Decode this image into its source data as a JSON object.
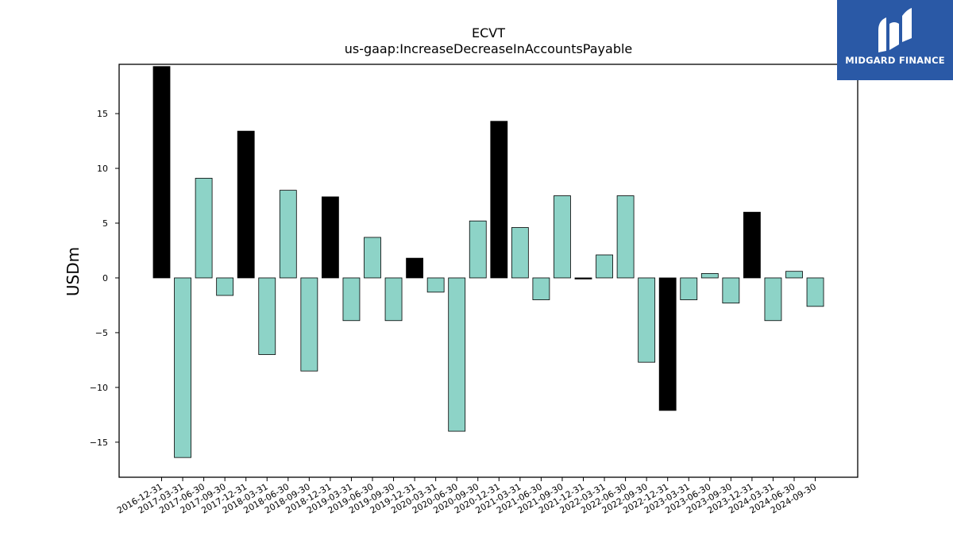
{
  "chart_data": {
    "type": "bar",
    "title": "ECVT",
    "subtitle": "us-gaap:IncreaseDecreaseInAccountsPayable",
    "xlabel": "",
    "ylabel": "USDm",
    "ylim": [
      -18.2,
      19.5
    ],
    "yticks": [
      -15,
      -10,
      -5,
      0,
      5,
      10,
      15
    ],
    "ytick_labels": [
      "−15",
      "−10",
      "−5",
      "0",
      "5",
      "10",
      "15"
    ],
    "grid": false,
    "categories": [
      "2016-12-31",
      "2017-03-31",
      "2017-06-30",
      "2017-09-30",
      "2017-12-31",
      "2018-03-31",
      "2018-06-30",
      "2018-09-30",
      "2018-12-31",
      "2019-03-31",
      "2019-06-30",
      "2019-09-30",
      "2019-12-31",
      "2020-03-31",
      "2020-06-30",
      "2020-09-30",
      "2020-12-31",
      "2021-03-31",
      "2021-06-30",
      "2021-09-30",
      "2021-12-31",
      "2022-03-31",
      "2022-06-30",
      "2022-09-30",
      "2022-12-31",
      "2023-03-31",
      "2023-06-30",
      "2023-09-30",
      "2023-12-31",
      "2024-03-31",
      "2024-06-30",
      "2024-09-30"
    ],
    "values": [
      19.3,
      -16.4,
      9.1,
      -1.6,
      13.4,
      -7.0,
      8.0,
      -8.5,
      7.4,
      -3.9,
      3.7,
      -3.9,
      1.8,
      -1.3,
      -14.0,
      5.2,
      14.3,
      4.6,
      -2.0,
      7.5,
      -0.1,
      2.1,
      7.5,
      -7.7,
      -12.1,
      -2.0,
      0.4,
      -2.3,
      6.0,
      -3.9,
      0.6,
      -2.6
    ],
    "bar_colors": [
      "#000000",
      "#8dd3c7",
      "#8dd3c7",
      "#8dd3c7",
      "#000000",
      "#8dd3c7",
      "#8dd3c7",
      "#8dd3c7",
      "#000000",
      "#8dd3c7",
      "#8dd3c7",
      "#8dd3c7",
      "#000000",
      "#8dd3c7",
      "#8dd3c7",
      "#8dd3c7",
      "#000000",
      "#8dd3c7",
      "#8dd3c7",
      "#8dd3c7",
      "#000000",
      "#8dd3c7",
      "#8dd3c7",
      "#8dd3c7",
      "#000000",
      "#8dd3c7",
      "#8dd3c7",
      "#8dd3c7",
      "#000000",
      "#8dd3c7",
      "#8dd3c7",
      "#8dd3c7"
    ]
  },
  "colors": {
    "highlight_bar": "#000000",
    "normal_bar": "#8dd3c7",
    "logo_bg": "#2a59a6"
  },
  "logo": {
    "text": "MIDGARD FINANCE"
  }
}
